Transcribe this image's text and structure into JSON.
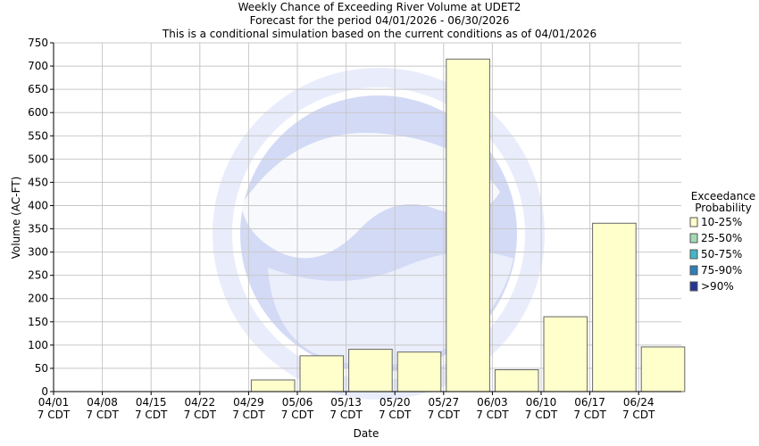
{
  "chart_data": {
    "type": "bar",
    "title": [
      "Weekly Chance of Exceeding River Volume at UDET2",
      "Forecast for the period 04/01/2026 - 06/30/2026",
      "This is a conditional simulation based on the current conditions as of 04/01/2026"
    ],
    "xlabel": "Date",
    "ylabel": "Volume (AC-FT)",
    "ylim": [
      0,
      750
    ],
    "yticks": [
      0,
      50,
      100,
      150,
      200,
      250,
      300,
      350,
      400,
      450,
      500,
      550,
      600,
      650,
      700,
      750
    ],
    "x_ticks": [
      {
        "date": "04/01",
        "time": "7 CDT"
      },
      {
        "date": "04/08",
        "time": "7 CDT"
      },
      {
        "date": "04/15",
        "time": "7 CDT"
      },
      {
        "date": "04/22",
        "time": "7 CDT"
      },
      {
        "date": "04/29",
        "time": "7 CDT"
      },
      {
        "date": "05/06",
        "time": "7 CDT"
      },
      {
        "date": "05/13",
        "time": "7 CDT"
      },
      {
        "date": "05/20",
        "time": "7 CDT"
      },
      {
        "date": "05/27",
        "time": "7 CDT"
      },
      {
        "date": "06/03",
        "time": "7 CDT"
      },
      {
        "date": "06/10",
        "time": "7 CDT"
      },
      {
        "date": "06/17",
        "time": "7 CDT"
      },
      {
        "date": "06/24",
        "time": "7 CDT"
      }
    ],
    "grid": true,
    "legend_position": "right",
    "legend_title": [
      "Exceedance",
      "Probability"
    ],
    "series": [
      {
        "name": "10-25%",
        "color": "#ffffcc",
        "values": [
          0,
          0,
          0,
          0,
          25,
          77,
          91,
          85,
          715,
          47,
          161,
          362,
          96
        ]
      }
    ],
    "legend": [
      {
        "label": "10-25%",
        "color": "#ffffcc"
      },
      {
        "label": "25-50%",
        "color": "#a1dab4"
      },
      {
        "label": "50-75%",
        "color": "#41b6c4"
      },
      {
        "label": "75-90%",
        "color": "#2c7fb8"
      },
      {
        "label": ">90%",
        "color": "#253494"
      }
    ]
  }
}
